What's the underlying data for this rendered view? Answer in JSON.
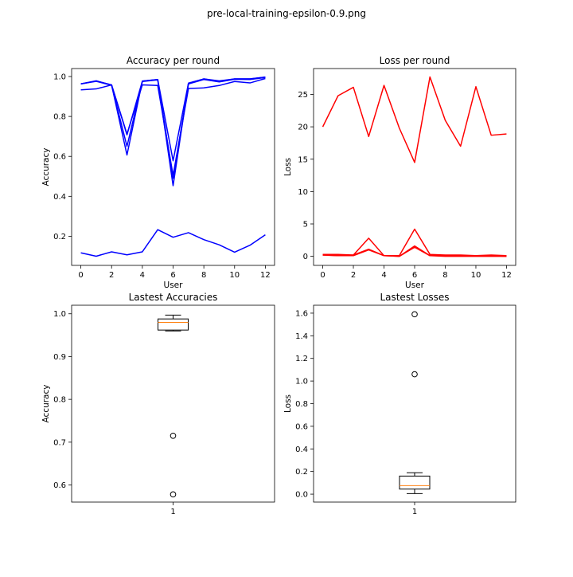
{
  "figure": {
    "suptitle": "pre-local-training-epsilon-0.9.png"
  },
  "chart_data": [
    {
      "type": "line",
      "title": "Accuracy per round",
      "xlabel": "User",
      "ylabel": "Accuracy",
      "color": "#0000ff",
      "xlim": [
        -0.6,
        12.6
      ],
      "ylim": [
        0.054,
        1.04
      ],
      "xticks": [
        0,
        2,
        4,
        6,
        8,
        10,
        12
      ],
      "yticks": [
        0.2,
        0.4,
        0.6,
        0.8,
        1.0
      ],
      "ytick_labels": [
        "0.2",
        "0.4",
        "0.6",
        "0.8",
        "1.0"
      ],
      "x": [
        0,
        1,
        2,
        3,
        4,
        5,
        6,
        7,
        8,
        9,
        10,
        11,
        12
      ],
      "series": [
        {
          "values": [
            0.963,
            0.978,
            0.958,
            0.708,
            0.977,
            0.985,
            0.578,
            0.967,
            0.988,
            0.978,
            0.988,
            0.988,
            0.997
          ]
        },
        {
          "values": [
            0.963,
            0.978,
            0.958,
            0.607,
            0.977,
            0.985,
            0.453,
            0.967,
            0.988,
            0.975,
            0.988,
            0.988,
            0.997
          ]
        },
        {
          "values": [
            0.963,
            0.976,
            0.956,
            0.65,
            0.975,
            0.983,
            0.49,
            0.963,
            0.985,
            0.973,
            0.986,
            0.985,
            0.995
          ]
        },
        {
          "values": [
            0.933,
            0.938,
            0.958,
            0.712,
            0.958,
            0.955,
            0.505,
            0.94,
            0.943,
            0.955,
            0.975,
            0.968,
            0.99
          ]
        },
        {
          "values": [
            0.117,
            0.1,
            0.122,
            0.107,
            0.122,
            0.233,
            0.195,
            0.218,
            0.183,
            0.157,
            0.12,
            0.155,
            0.207
          ]
        }
      ]
    },
    {
      "type": "line",
      "title": "Loss per round",
      "xlabel": "User",
      "ylabel": "Loss",
      "color": "#ff0000",
      "xlim": [
        -0.6,
        12.6
      ],
      "ylim": [
        -1.4,
        29.0
      ],
      "xticks": [
        0,
        2,
        4,
        6,
        8,
        10,
        12
      ],
      "yticks": [
        0,
        5,
        10,
        15,
        20,
        25
      ],
      "ytick_labels": [
        "0",
        "5",
        "10",
        "15",
        "20",
        "25"
      ],
      "x": [
        0,
        1,
        2,
        3,
        4,
        5,
        6,
        7,
        8,
        9,
        10,
        11,
        12
      ],
      "series": [
        {
          "values": [
            20.0,
            24.8,
            26.1,
            18.5,
            26.4,
            19.8,
            14.5,
            27.7,
            21.0,
            17.0,
            26.2,
            18.7,
            18.9
          ]
        },
        {
          "values": [
            0.3,
            0.3,
            0.2,
            2.8,
            0.1,
            0.1,
            4.2,
            0.3,
            0.2,
            0.2,
            0.1,
            0.2,
            0.1
          ]
        },
        {
          "values": [
            0.2,
            0.1,
            0.2,
            1.1,
            0.1,
            0.0,
            1.6,
            0.1,
            0.1,
            0.1,
            0.1,
            0.1,
            0.0
          ]
        },
        {
          "values": [
            0.2,
            0.1,
            0.1,
            1.0,
            0.1,
            0.0,
            1.4,
            0.1,
            0.0,
            0.0,
            0.0,
            0.0,
            0.0
          ]
        }
      ]
    },
    {
      "type": "box",
      "title": "Lastest Accuracies",
      "ylabel": "Accuracy",
      "categories": [
        "1"
      ],
      "ylim": [
        0.56,
        1.02
      ],
      "yticks": [
        0.6,
        0.7,
        0.8,
        0.9,
        1.0
      ],
      "ytick_labels": [
        "0.6",
        "0.7",
        "0.8",
        "0.9",
        "1.0"
      ],
      "box": {
        "whislo": 0.96,
        "q1": 0.962,
        "median": 0.98,
        "q3": 0.988,
        "whishi": 0.997,
        "fliers": [
          0.715,
          0.578
        ]
      }
    },
    {
      "type": "box",
      "title": "Lastest Losses",
      "ylabel": "Loss",
      "categories": [
        "1"
      ],
      "ylim": [
        -0.07,
        1.67
      ],
      "yticks": [
        0.0,
        0.2,
        0.4,
        0.6,
        0.8,
        1.0,
        1.2,
        1.4,
        1.6
      ],
      "ytick_labels": [
        "0.0",
        "0.2",
        "0.4",
        "0.6",
        "0.8",
        "1.0",
        "1.2",
        "1.4",
        "1.6"
      ],
      "box": {
        "whislo": 0.005,
        "q1": 0.045,
        "median": 0.075,
        "q3": 0.16,
        "whishi": 0.19,
        "fliers": [
          1.06,
          1.59
        ]
      }
    }
  ]
}
